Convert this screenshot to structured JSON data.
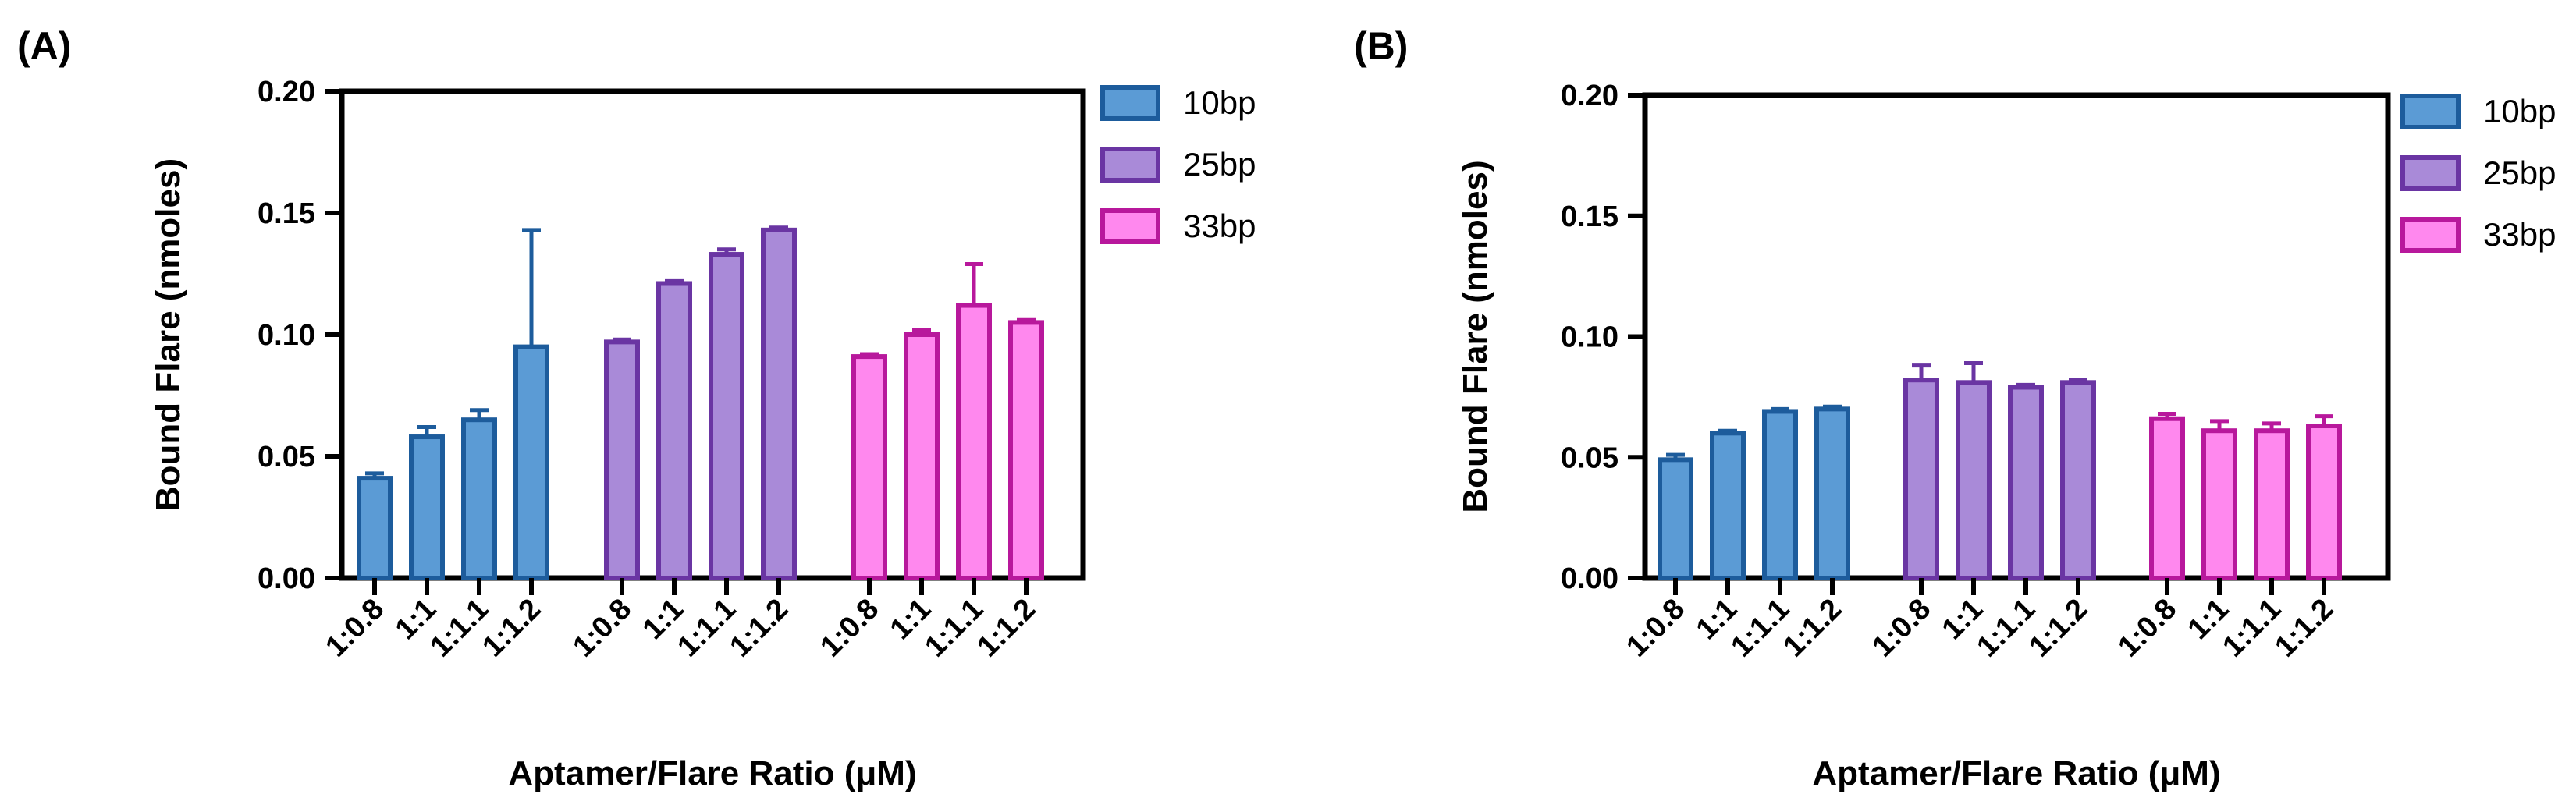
{
  "chart_data": [
    {
      "type": "bar",
      "panel_label": "(A)",
      "title": "",
      "xlabel": "Aptamer/Flare Ratio (μM)",
      "ylabel": "Bound Flare (nmoles)",
      "ylim": [
        0,
        0.2
      ],
      "yticks": [
        "0.00",
        "0.05",
        "0.10",
        "0.15",
        "0.20"
      ],
      "grid": false,
      "legend_position": "right",
      "categories": [
        "1:0.8",
        "1:1",
        "1:1.1",
        "1:1.2"
      ],
      "series": [
        {
          "name": "10bp",
          "fill": "#5b9bd5",
          "stroke": "#1d5c9c",
          "values": [
            0.041,
            0.058,
            0.065,
            0.095
          ],
          "errors": [
            0.002,
            0.004,
            0.004,
            0.048
          ]
        },
        {
          "name": "25bp",
          "fill": "#a98ad8",
          "stroke": "#6a35a3",
          "values": [
            0.097,
            0.121,
            0.133,
            0.143
          ],
          "errors": [
            0.001,
            0.001,
            0.002,
            0.001
          ]
        },
        {
          "name": "33bp",
          "fill": "#ff88ee",
          "stroke": "#b8189c",
          "values": [
            0.091,
            0.1,
            0.112,
            0.105
          ],
          "errors": [
            0.001,
            0.002,
            0.017,
            0.001
          ]
        }
      ]
    },
    {
      "type": "bar",
      "panel_label": "(B)",
      "title": "",
      "xlabel": "Aptamer/Flare Ratio (μM)",
      "ylabel": "Bound Flare (nmoles)",
      "ylim": [
        0,
        0.2
      ],
      "yticks": [
        "0.00",
        "0.05",
        "0.10",
        "0.15",
        "0.20"
      ],
      "grid": false,
      "legend_position": "right",
      "categories": [
        "1:0.8",
        "1:1",
        "1:1.1",
        "1:1.2"
      ],
      "series": [
        {
          "name": "10bp",
          "fill": "#5b9bd5",
          "stroke": "#1d5c9c",
          "values": [
            0.049,
            0.06,
            0.069,
            0.07
          ],
          "errors": [
            0.002,
            0.001,
            0.001,
            0.001
          ]
        },
        {
          "name": "25bp",
          "fill": "#a98ad8",
          "stroke": "#6a35a3",
          "values": [
            0.082,
            0.081,
            0.079,
            0.081
          ],
          "errors": [
            0.006,
            0.008,
            0.001,
            0.001
          ]
        },
        {
          "name": "33bp",
          "fill": "#ff88ee",
          "stroke": "#b8189c",
          "values": [
            0.066,
            0.061,
            0.061,
            0.063
          ],
          "errors": [
            0.002,
            0.004,
            0.003,
            0.004
          ]
        }
      ]
    }
  ]
}
